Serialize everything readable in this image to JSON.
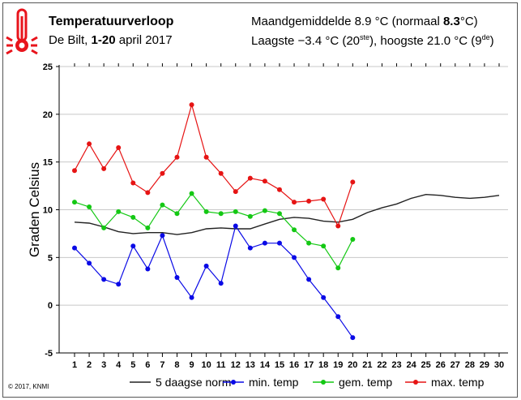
{
  "header": {
    "title": "Temperatuurverloop",
    "location": "De Bilt,",
    "period_bold": "1-20",
    "period_rest": "april 2017",
    "mean_label": "Maandgemiddelde 8.9 °C (normaal",
    "mean_normal": "8.3",
    "mean_unit": "°C)",
    "extremes_a": "Laagste −3.4 °C (20",
    "extremes_sup1": "ste",
    "extremes_b": "), hoogste 21.0 °C (9",
    "extremes_sup2": "de",
    "extremes_c": ")",
    "icon": "thermometer-icon",
    "icon_color": "#e8141c"
  },
  "copyright": "© 2017, KNMI",
  "chart_data": {
    "type": "line",
    "ylabel": "Graden Celsius",
    "xlabel": "",
    "ylim": [
      -5,
      25
    ],
    "yticks": [
      -5,
      0,
      5,
      10,
      15,
      20,
      25
    ],
    "xlim": [
      1,
      30
    ],
    "xticks": [
      1,
      2,
      3,
      4,
      5,
      6,
      7,
      8,
      9,
      10,
      11,
      12,
      13,
      14,
      15,
      16,
      17,
      18,
      19,
      20,
      21,
      22,
      23,
      24,
      25,
      26,
      27,
      28,
      29,
      30
    ],
    "grid": "horizontal",
    "legend_placement": "bottom",
    "series": [
      {
        "name": "5 daagse norm",
        "color": "#222222",
        "markers": false,
        "x": [
          1,
          2,
          3,
          4,
          5,
          6,
          7,
          8,
          9,
          10,
          11,
          12,
          13,
          14,
          15,
          16,
          17,
          18,
          19,
          20,
          21,
          22,
          23,
          24,
          25,
          26,
          27,
          28,
          29,
          30
        ],
        "values": [
          8.7,
          8.6,
          8.2,
          7.7,
          7.5,
          7.6,
          7.6,
          7.4,
          7.6,
          8.0,
          8.1,
          8.0,
          8.0,
          8.5,
          9.0,
          9.2,
          9.1,
          8.8,
          8.7,
          9.0,
          9.7,
          10.2,
          10.6,
          11.2,
          11.6,
          11.5,
          11.3,
          11.2,
          11.3,
          11.5
        ]
      },
      {
        "name": "min. temp",
        "color": "#0a0ae6",
        "markers": true,
        "x": [
          1,
          2,
          3,
          4,
          5,
          6,
          7,
          8,
          9,
          10,
          11,
          12,
          13,
          14,
          15,
          16,
          17,
          18,
          19,
          20
        ],
        "values": [
          6.0,
          4.4,
          2.7,
          2.2,
          6.2,
          3.8,
          7.3,
          2.9,
          0.8,
          4.1,
          2.3,
          8.3,
          6.0,
          6.5,
          6.5,
          5.0,
          2.7,
          0.8,
          -1.2,
          -3.4
        ]
      },
      {
        "name": "gem. temp",
        "color": "#14c814",
        "markers": true,
        "x": [
          1,
          2,
          3,
          4,
          5,
          6,
          7,
          8,
          9,
          10,
          11,
          12,
          13,
          14,
          15,
          16,
          17,
          18,
          19,
          20
        ],
        "values": [
          10.8,
          10.3,
          8.1,
          9.8,
          9.2,
          8.1,
          10.5,
          9.6,
          11.7,
          9.8,
          9.6,
          9.8,
          9.3,
          9.9,
          9.6,
          7.9,
          6.5,
          6.2,
          3.9,
          6.9
        ]
      },
      {
        "name": "max. temp",
        "color": "#e61414",
        "markers": true,
        "x": [
          1,
          2,
          3,
          4,
          5,
          6,
          7,
          8,
          9,
          10,
          11,
          12,
          13,
          14,
          15,
          16,
          17,
          18,
          19,
          20
        ],
        "values": [
          14.1,
          16.9,
          14.3,
          16.5,
          12.8,
          11.8,
          13.8,
          15.5,
          21.0,
          15.5,
          13.8,
          11.9,
          13.3,
          13.0,
          12.1,
          10.8,
          10.9,
          11.1,
          8.3,
          12.9
        ]
      }
    ]
  }
}
